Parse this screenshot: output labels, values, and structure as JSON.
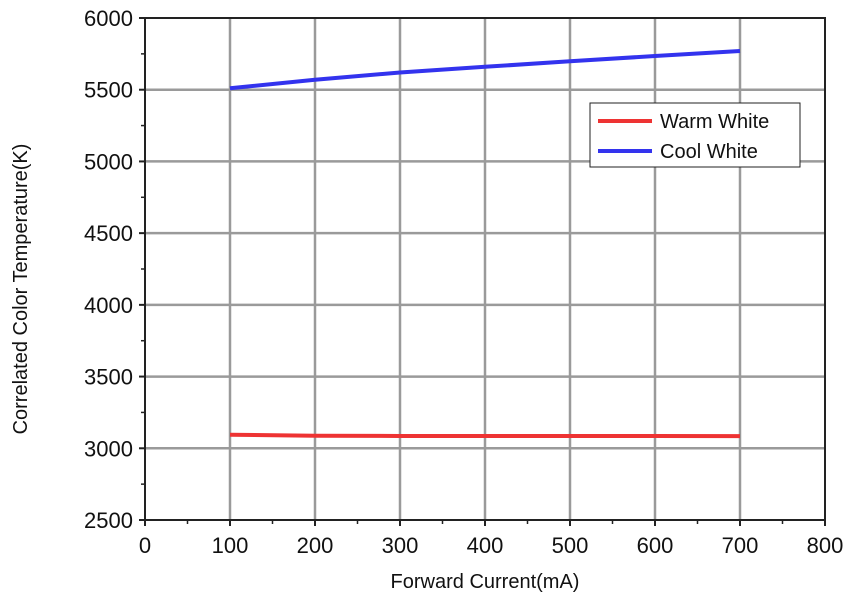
{
  "chart_data": {
    "type": "line",
    "title": "",
    "xlabel": "Forward Current(mA)",
    "ylabel": "Correlated Color Temperature(K)",
    "xlim": [
      0,
      800
    ],
    "ylim": [
      2500,
      6000
    ],
    "xticks": [
      0,
      100,
      200,
      300,
      400,
      500,
      600,
      700,
      800
    ],
    "yticks": [
      2500,
      3000,
      3500,
      4000,
      4500,
      5000,
      5500,
      6000
    ],
    "grid": true,
    "legend_position": "top-right",
    "series": [
      {
        "name": "Warm White",
        "color": "#ee3333",
        "x": [
          100,
          200,
          300,
          400,
          500,
          600,
          700
        ],
        "y": [
          3095,
          3088,
          3086,
          3086,
          3086,
          3086,
          3085
        ]
      },
      {
        "name": "Cool White",
        "color": "#3333ee",
        "x": [
          100,
          200,
          300,
          400,
          500,
          600,
          700
        ],
        "y": [
          5510,
          5570,
          5620,
          5660,
          5698,
          5735,
          5770
        ]
      }
    ]
  }
}
